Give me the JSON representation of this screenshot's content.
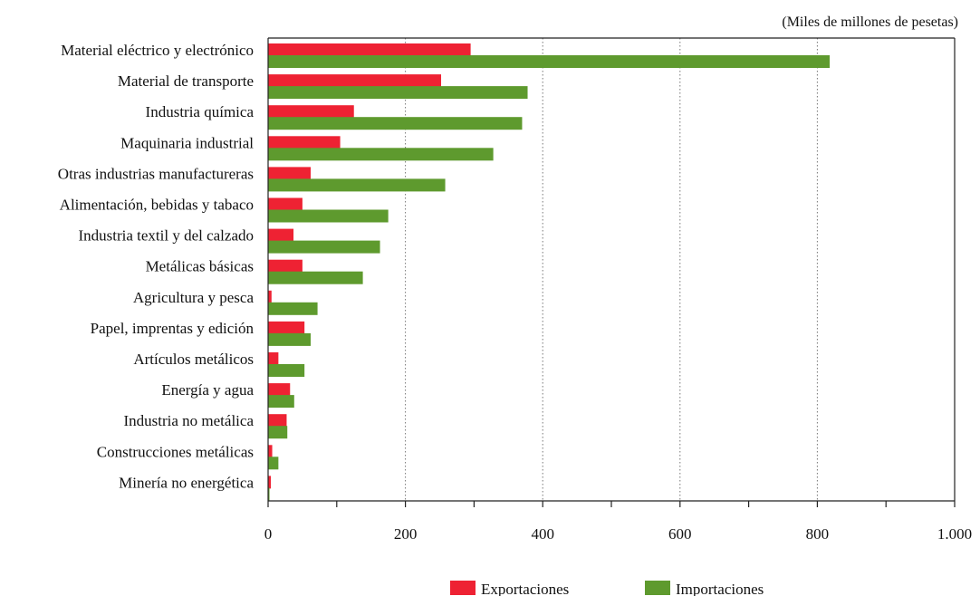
{
  "chart_data": {
    "type": "bar",
    "orientation": "horizontal",
    "unit_note": "(Miles de millones de pesetas)",
    "categories": [
      "Material eléctrico y electrónico",
      "Material de transporte",
      "Industria química",
      "Maquinaria industrial",
      "Otras industrias manufactureras",
      "Alimentación, bebidas y tabaco",
      "Industria textil y del calzado",
      "Metálicas básicas",
      "Agricultura y pesca",
      "Papel, imprentas y edición",
      "Artículos metálicos",
      "Energía y agua",
      "Industria no metálica",
      "Construcciones metálicas",
      "Minería no energética"
    ],
    "series": [
      {
        "name": "Exportaciones",
        "color": "#ee2233",
        "values": [
          295,
          252,
          125,
          105,
          62,
          50,
          37,
          50,
          5,
          53,
          15,
          32,
          27,
          6,
          4
        ]
      },
      {
        "name": "Importaciones",
        "color": "#5e9a2e",
        "values": [
          818,
          378,
          370,
          328,
          258,
          175,
          163,
          138,
          72,
          62,
          53,
          38,
          28,
          15,
          2
        ]
      }
    ],
    "xlim": [
      0,
      1000
    ],
    "x_ticks": [
      0,
      200,
      400,
      600,
      800,
      1000
    ],
    "x_tick_labels": [
      "0",
      "200",
      "400",
      "600",
      "800",
      "1.000"
    ],
    "grid": "vertical dotted",
    "legend_placement": "bottom-center"
  }
}
